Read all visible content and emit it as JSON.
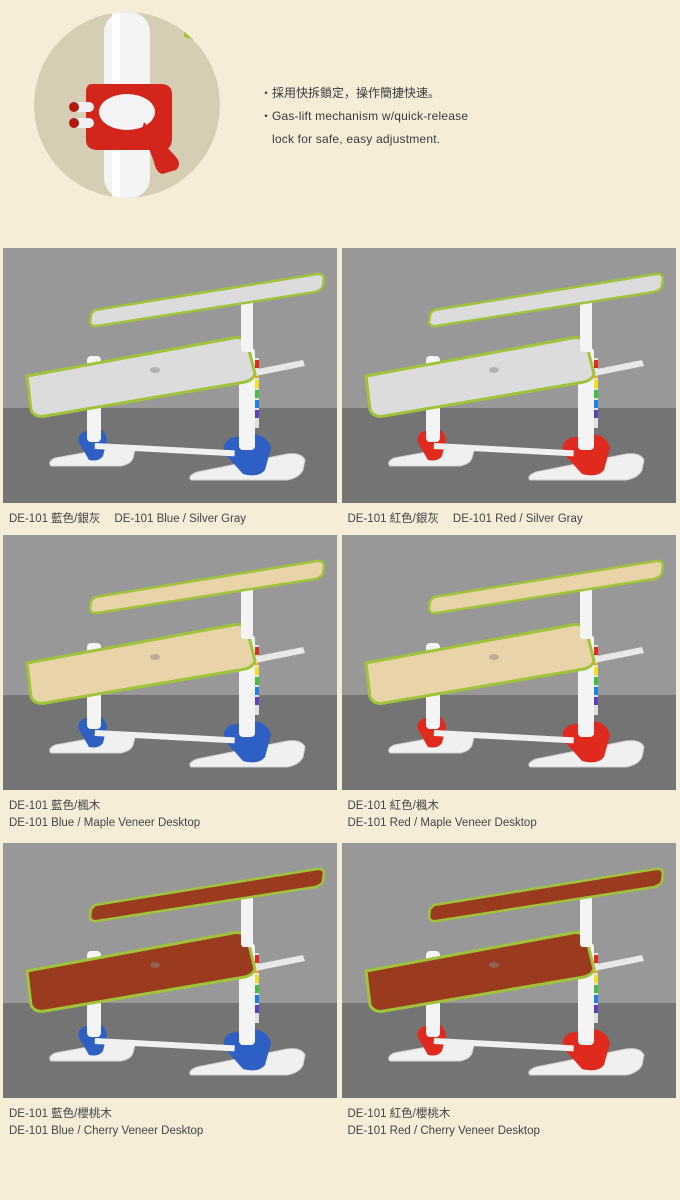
{
  "feature": {
    "bullet": "・",
    "line1_zh": "採用快拆鎖定，操作簡捷快速。",
    "line2_en_a": "Gas-lift mechanism w/quick-release",
    "line2_en_b": "lock for safe, easy adjustment."
  },
  "products": [
    {
      "zh": "DE-101 藍色/銀灰",
      "en": "DE-101 Blue / Silver Gray",
      "leg_color": "#2d5fc4",
      "desktop_color": "#dcdcdc",
      "edge_color": "#9fc43a",
      "inline": true
    },
    {
      "zh": "DE-101 紅色/銀灰",
      "en": "DE-101 Red / Silver Gray",
      "leg_color": "#e02a1e",
      "desktop_color": "#dcdcdc",
      "edge_color": "#9fc43a",
      "inline": true
    },
    {
      "zh": "DE-101 藍色/楓木",
      "en": "DE-101 Blue / Maple Veneer Desktop",
      "leg_color": "#2d5fc4",
      "desktop_color": "#e8d4a8",
      "edge_color": "#9fc43a",
      "inline": false
    },
    {
      "zh": "DE-101 紅色/楓木",
      "en": "DE-101 Red / Maple Veneer Desktop",
      "leg_color": "#e02a1e",
      "desktop_color": "#e8d4a8",
      "edge_color": "#9fc43a",
      "inline": false
    },
    {
      "zh": "DE-101 藍色/櫻桃木",
      "en": "DE-101 Blue / Cherry Veneer Desktop",
      "leg_color": "#2d5fc4",
      "desktop_color": "#9a3a1e",
      "edge_color": "#9fc43a",
      "inline": false
    },
    {
      "zh": "DE-101 紅色/櫻桃木",
      "en": "DE-101 Red / Cherry Veneer Desktop",
      "leg_color": "#e02a1e",
      "desktop_color": "#9a3a1e",
      "edge_color": "#9fc43a",
      "inline": false
    }
  ],
  "bg_gradient_top": "#9a9a9a",
  "bg_gradient_bottom": "#707070"
}
